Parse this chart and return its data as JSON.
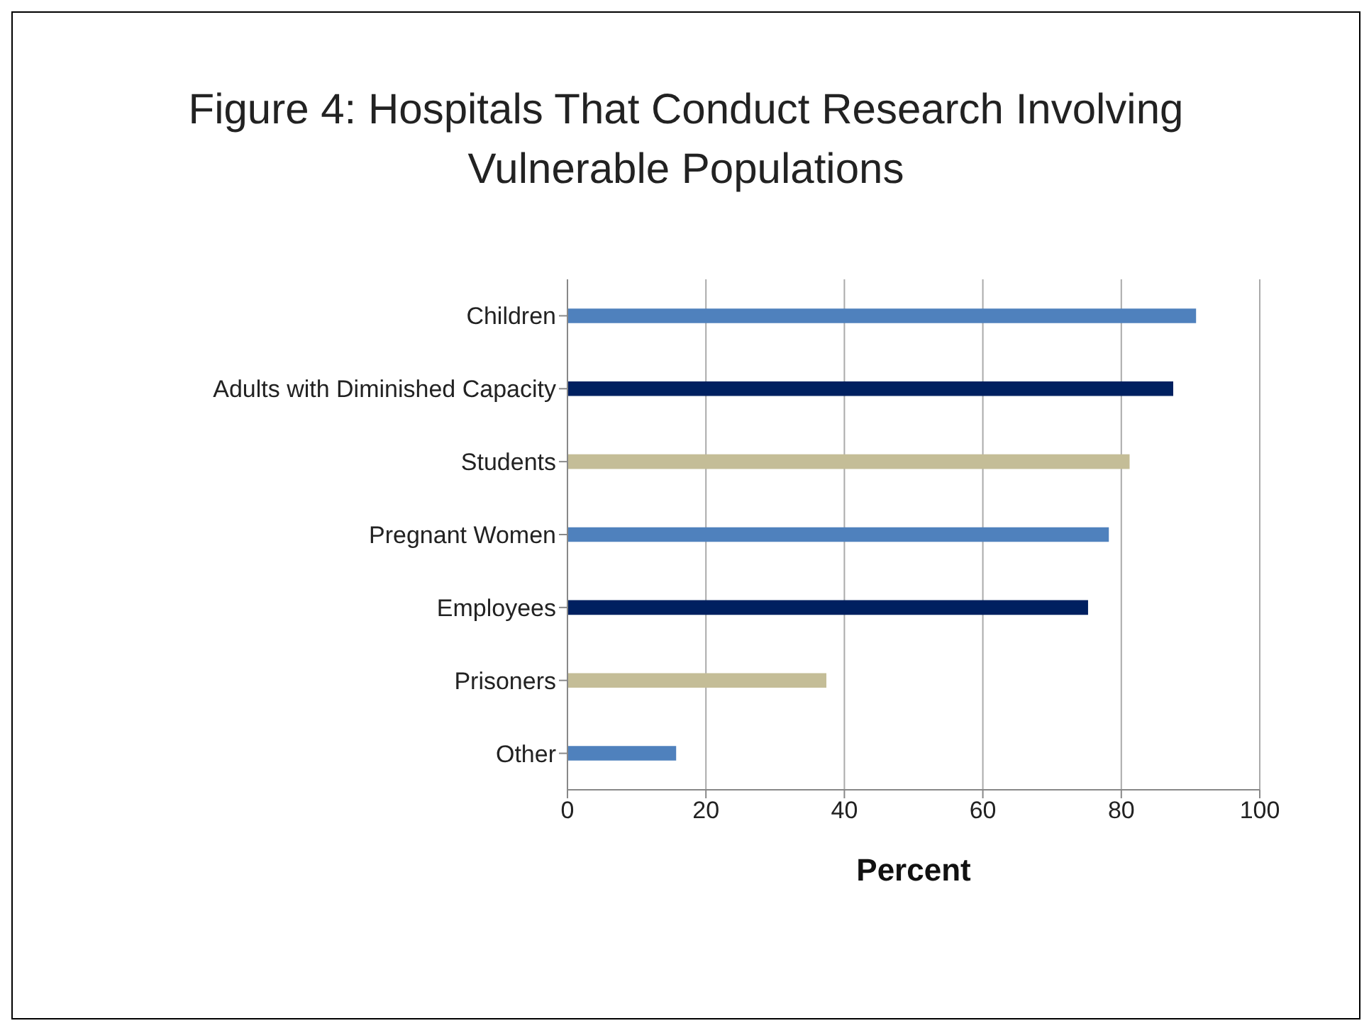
{
  "chart_data": {
    "type": "bar",
    "orientation": "horizontal",
    "title": "Figure 4: Hospitals That Conduct Research Involving Vulnerable Populations",
    "xlabel": "Percent",
    "categories": [
      "Children",
      "Adults with Diminished Capacity",
      "Students",
      "Pregnant Women",
      "Employees",
      "Prisoners",
      "Other"
    ],
    "values": [
      90.8,
      87.5,
      81.2,
      78.2,
      75.2,
      37.4,
      15.7
    ],
    "colors": [
      "#4f81bd",
      "#002060",
      "#c4bd97",
      "#4f81bd",
      "#002060",
      "#c4bd97",
      "#4f81bd"
    ],
    "xlim": [
      0,
      100
    ],
    "xticks": [
      0,
      20,
      40,
      60,
      80,
      100
    ],
    "grid": "x"
  }
}
